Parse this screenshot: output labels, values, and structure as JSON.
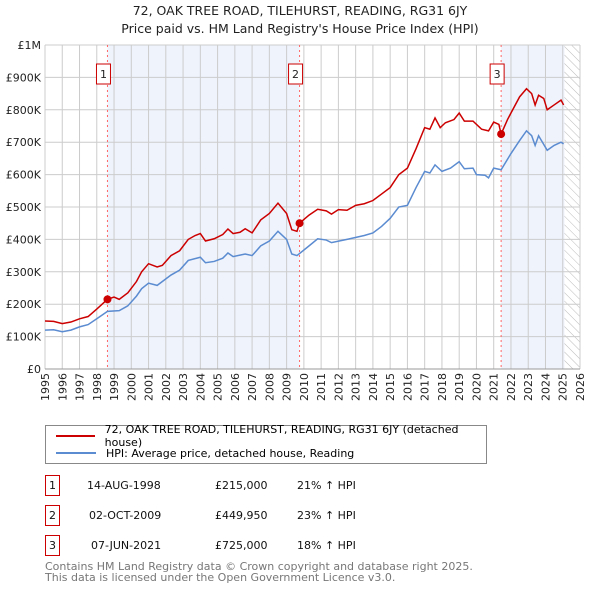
{
  "chart_data": {
    "type": "line",
    "title": "72, OAK TREE ROAD, TILEHURST, READING, RG31 6JY",
    "subtitle": "Price paid vs. HM Land Registry's House Price Index (HPI)",
    "xlim": [
      1995,
      2026
    ],
    "ylim": [
      0,
      1000000
    ],
    "x_ticks": [
      "1995",
      "1996",
      "1997",
      "1998",
      "1999",
      "2000",
      "2001",
      "2002",
      "2003",
      "2004",
      "2005",
      "2006",
      "2007",
      "2008",
      "2009",
      "2010",
      "2011",
      "2012",
      "2013",
      "2014",
      "2015",
      "2016",
      "2017",
      "2018",
      "2019",
      "2020",
      "2021",
      "2022",
      "2023",
      "2024",
      "2025",
      "2026"
    ],
    "y_ticks": [
      {
        "v": 0,
        "label": "£0"
      },
      {
        "v": 100000,
        "label": "£100K"
      },
      {
        "v": 200000,
        "label": "£200K"
      },
      {
        "v": 300000,
        "label": "£300K"
      },
      {
        "v": 400000,
        "label": "£400K"
      },
      {
        "v": 500000,
        "label": "£500K"
      },
      {
        "v": 600000,
        "label": "£600K"
      },
      {
        "v": 700000,
        "label": "£700K"
      },
      {
        "v": 800000,
        "label": "£800K"
      },
      {
        "v": 900000,
        "label": "£900K"
      },
      {
        "v": 1000000,
        "label": "£1M"
      }
    ],
    "grid": true,
    "shaded_ranges": [
      [
        1998.62,
        2009.75
      ],
      [
        2021.43,
        2025.1
      ]
    ],
    "hatched_from": 2025.1,
    "series": [
      {
        "name": "72, OAK TREE ROAD, TILEHURST, READING, RG31 6JY (detached house)",
        "color": "#cc0000",
        "points": [
          [
            1995,
            148
          ],
          [
            1995.5,
            147
          ],
          [
            1996,
            140
          ],
          [
            1996.5,
            145
          ],
          [
            1997,
            155
          ],
          [
            1997.5,
            162
          ],
          [
            1998,
            185
          ],
          [
            1998.62,
            215
          ],
          [
            1999,
            222
          ],
          [
            1999.3,
            215
          ],
          [
            1999.8,
            235
          ],
          [
            2000.3,
            270
          ],
          [
            2000.6,
            300
          ],
          [
            2001,
            325
          ],
          [
            2001.5,
            315
          ],
          [
            2001.8,
            320
          ],
          [
            2002.3,
            350
          ],
          [
            2002.8,
            365
          ],
          [
            2003.3,
            400
          ],
          [
            2003.7,
            412
          ],
          [
            2004,
            418
          ],
          [
            2004.3,
            395
          ],
          [
            2004.8,
            402
          ],
          [
            2005.3,
            415
          ],
          [
            2005.6,
            432
          ],
          [
            2005.9,
            418
          ],
          [
            2006.3,
            422
          ],
          [
            2006.6,
            433
          ],
          [
            2007,
            420
          ],
          [
            2007.5,
            460
          ],
          [
            2008,
            480
          ],
          [
            2008.5,
            512
          ],
          [
            2009,
            480
          ],
          [
            2009.3,
            430
          ],
          [
            2009.6,
            425
          ],
          [
            2009.75,
            450
          ],
          [
            2010.3,
            475
          ],
          [
            2010.8,
            493
          ],
          [
            2011.3,
            488
          ],
          [
            2011.6,
            478
          ],
          [
            2012,
            492
          ],
          [
            2012.5,
            490
          ],
          [
            2013,
            505
          ],
          [
            2013.5,
            510
          ],
          [
            2014,
            520
          ],
          [
            2014.5,
            540
          ],
          [
            2015,
            560
          ],
          [
            2015.5,
            600
          ],
          [
            2016,
            620
          ],
          [
            2016.5,
            680
          ],
          [
            2017,
            745
          ],
          [
            2017.3,
            740
          ],
          [
            2017.6,
            775
          ],
          [
            2017.9,
            745
          ],
          [
            2018.2,
            760
          ],
          [
            2018.7,
            770
          ],
          [
            2019,
            790
          ],
          [
            2019.3,
            765
          ],
          [
            2019.8,
            765
          ],
          [
            2020.3,
            740
          ],
          [
            2020.7,
            735
          ],
          [
            2021,
            762
          ],
          [
            2021.3,
            755
          ],
          [
            2021.43,
            725
          ],
          [
            2021.8,
            770
          ],
          [
            2022,
            790
          ],
          [
            2022.5,
            840
          ],
          [
            2022.9,
            865
          ],
          [
            2023.2,
            850
          ],
          [
            2023.4,
            815
          ],
          [
            2023.6,
            845
          ],
          [
            2023.9,
            835
          ],
          [
            2024.1,
            800
          ],
          [
            2024.5,
            815
          ],
          [
            2024.9,
            830
          ],
          [
            2025.05,
            815
          ]
        ]
      },
      {
        "name": "HPI: Average price, detached house, Reading",
        "color": "#5b8bd0",
        "points": [
          [
            1995,
            120
          ],
          [
            1995.5,
            121
          ],
          [
            1996,
            115
          ],
          [
            1996.5,
            120
          ],
          [
            1997,
            130
          ],
          [
            1997.5,
            137
          ],
          [
            1998,
            155
          ],
          [
            1998.62,
            178
          ],
          [
            1999.3,
            180
          ],
          [
            1999.8,
            195
          ],
          [
            2000.3,
            225
          ],
          [
            2000.6,
            248
          ],
          [
            2001,
            265
          ],
          [
            2001.5,
            258
          ],
          [
            2002.3,
            290
          ],
          [
            2002.8,
            305
          ],
          [
            2003.3,
            335
          ],
          [
            2004,
            345
          ],
          [
            2004.3,
            328
          ],
          [
            2004.8,
            332
          ],
          [
            2005.3,
            342
          ],
          [
            2005.6,
            358
          ],
          [
            2005.9,
            347
          ],
          [
            2006.6,
            355
          ],
          [
            2007,
            350
          ],
          [
            2007.5,
            380
          ],
          [
            2008,
            395
          ],
          [
            2008.5,
            425
          ],
          [
            2009,
            400
          ],
          [
            2009.3,
            355
          ],
          [
            2009.6,
            350
          ],
          [
            2010.3,
            380
          ],
          [
            2010.8,
            402
          ],
          [
            2011.3,
            398
          ],
          [
            2011.6,
            390
          ],
          [
            2012.5,
            400
          ],
          [
            2013.5,
            412
          ],
          [
            2014,
            420
          ],
          [
            2014.5,
            440
          ],
          [
            2015,
            465
          ],
          [
            2015.5,
            500
          ],
          [
            2016,
            505
          ],
          [
            2016.5,
            560
          ],
          [
            2017,
            610
          ],
          [
            2017.3,
            605
          ],
          [
            2017.6,
            630
          ],
          [
            2018,
            610
          ],
          [
            2018.5,
            620
          ],
          [
            2019,
            640
          ],
          [
            2019.3,
            618
          ],
          [
            2019.8,
            620
          ],
          [
            2020,
            600
          ],
          [
            2020.5,
            598
          ],
          [
            2020.7,
            590
          ],
          [
            2021,
            620
          ],
          [
            2021.43,
            615
          ],
          [
            2022,
            665
          ],
          [
            2022.5,
            705
          ],
          [
            2022.9,
            735
          ],
          [
            2023.2,
            720
          ],
          [
            2023.4,
            690
          ],
          [
            2023.6,
            720
          ],
          [
            2024.1,
            675
          ],
          [
            2024.5,
            690
          ],
          [
            2024.9,
            700
          ],
          [
            2025.05,
            695
          ]
        ]
      }
    ],
    "sales": [
      {
        "n": "1",
        "x": 1998.62,
        "v": 215
      },
      {
        "n": "2",
        "x": 2009.75,
        "v": 450
      },
      {
        "n": "3",
        "x": 2021.43,
        "v": 725
      }
    ]
  },
  "legend": {
    "red": "72, OAK TREE ROAD, TILEHURST, READING, RG31 6JY (detached house)",
    "blue": "HPI: Average price, detached house, Reading"
  },
  "transactions": [
    {
      "n": "1",
      "date": "14-AUG-1998",
      "price": "£215,000",
      "hpi": "21% ↑ HPI"
    },
    {
      "n": "2",
      "date": "02-OCT-2009",
      "price": "£449,950",
      "hpi": "23% ↑ HPI"
    },
    {
      "n": "3",
      "date": "07-JUN-2021",
      "price": "£725,000",
      "hpi": "18% ↑ HPI"
    }
  ],
  "footer": [
    "Contains HM Land Registry data © Crown copyright and database right 2025.",
    "This data is licensed under the Open Government Licence v3.0."
  ]
}
